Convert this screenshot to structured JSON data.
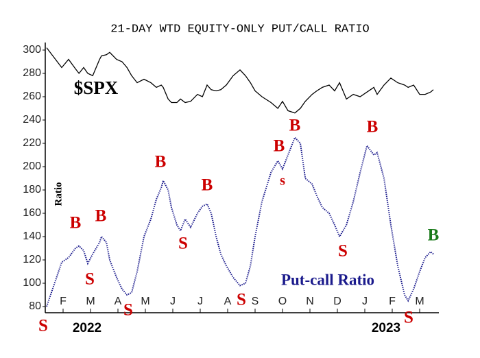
{
  "chart_data": {
    "type": "line",
    "title": "21-DAY WTD EQUITY-ONLY PUT/CALL RATIO",
    "y_label": "Ratio",
    "x": [
      0.4,
      0.95,
      1.2,
      1.45,
      1.58,
      1.75,
      1.9,
      2.08,
      2.33,
      2.4,
      2.58,
      2.7,
      2.95,
      3.15,
      3.33,
      3.5,
      3.7,
      3.95,
      4.2,
      4.4,
      4.58,
      4.65,
      4.83,
      4.95,
      5.15,
      5.28,
      5.45,
      5.65,
      5.9,
      6.08,
      6.25,
      6.4,
      6.58,
      6.75,
      6.95,
      7.2,
      7.45,
      7.65,
      7.83,
      8.0,
      8.25,
      8.58,
      8.83,
      9.0,
      9.2,
      9.45,
      9.65,
      9.83,
      10.08,
      10.25,
      10.45,
      10.7,
      10.9,
      11.08,
      11.33,
      11.58,
      11.83,
      12.08,
      12.33,
      12.45,
      12.7,
      12.95,
      13.2,
      13.45,
      13.58,
      13.78,
      14.0,
      14.2,
      14.4,
      14.5
    ],
    "series": [
      {
        "name": "$SPX",
        "color": "#000000",
        "style": "solid",
        "values": [
          302,
          285,
          292,
          284,
          280,
          285,
          280,
          278,
          292,
          295,
          296,
          298,
          292,
          290,
          285,
          278,
          272,
          275,
          272,
          268,
          270,
          268,
          258,
          255,
          255,
          258,
          255,
          256,
          262,
          260,
          270,
          266,
          265,
          266,
          270,
          278,
          283,
          278,
          272,
          265,
          260,
          255,
          250,
          256,
          248,
          246,
          250,
          256,
          262,
          265,
          268,
          270,
          265,
          272,
          258,
          262,
          260,
          264,
          268,
          262,
          270,
          276,
          272,
          270,
          268,
          270,
          262,
          262,
          264,
          266
        ]
      },
      {
        "name": "Put-call Ratio",
        "color": "#1a1a8c",
        "style": "dotted",
        "values": [
          80,
          118,
          122,
          130,
          132,
          128,
          117,
          125,
          135,
          140,
          135,
          120,
          105,
          95,
          90,
          92,
          110,
          140,
          155,
          172,
          182,
          188,
          180,
          165,
          150,
          145,
          155,
          148,
          160,
          166,
          168,
          160,
          140,
          125,
          115,
          105,
          98,
          100,
          115,
          140,
          170,
          195,
          205,
          198,
          210,
          225,
          220,
          190,
          185,
          175,
          165,
          160,
          150,
          140,
          150,
          170,
          195,
          218,
          210,
          212,
          190,
          150,
          115,
          90,
          85,
          95,
          110,
          122,
          127,
          125
        ]
      }
    ],
    "xlim": [
      0.4,
      14.6
    ],
    "xticks": [
      {
        "value": 1,
        "label": "F"
      },
      {
        "value": 2,
        "label": "M"
      },
      {
        "value": 3,
        "label": "A"
      },
      {
        "value": 4,
        "label": "M"
      },
      {
        "value": 5,
        "label": "J"
      },
      {
        "value": 6,
        "label": "J"
      },
      {
        "value": 7,
        "label": "A"
      },
      {
        "value": 8,
        "label": "S"
      },
      {
        "value": 9,
        "label": "O"
      },
      {
        "value": 10,
        "label": "N"
      },
      {
        "value": 11,
        "label": "D"
      },
      {
        "value": 12,
        "label": "J"
      },
      {
        "value": 13,
        "label": "F"
      },
      {
        "value": 14,
        "label": "M"
      }
    ],
    "ylim": [
      76,
      304
    ],
    "yticks": [
      80,
      100,
      120,
      140,
      160,
      180,
      200,
      220,
      240,
      260,
      280,
      300
    ],
    "year_labels": [
      "2022",
      "2023"
    ],
    "annotations": [
      {
        "text": "S",
        "color": "#cc0000"
      },
      {
        "text": "B",
        "color": "#cc0000"
      },
      {
        "text": "S",
        "color": "#cc0000"
      },
      {
        "text": "B",
        "color": "#cc0000"
      },
      {
        "text": "S",
        "color": "#cc0000"
      },
      {
        "text": "B",
        "color": "#cc0000"
      },
      {
        "text": "S",
        "color": "#cc0000"
      },
      {
        "text": "B",
        "color": "#cc0000"
      },
      {
        "text": "S",
        "color": "#cc0000"
      },
      {
        "text": "B",
        "color": "#cc0000"
      },
      {
        "text": "s",
        "color": "#cc0000"
      },
      {
        "text": "B",
        "color": "#cc0000"
      },
      {
        "text": "S",
        "color": "#cc0000"
      },
      {
        "text": "B",
        "color": "#cc0000"
      },
      {
        "text": "S",
        "color": "#cc0000"
      },
      {
        "text": "B",
        "color": "#1a7a1a"
      }
    ]
  }
}
